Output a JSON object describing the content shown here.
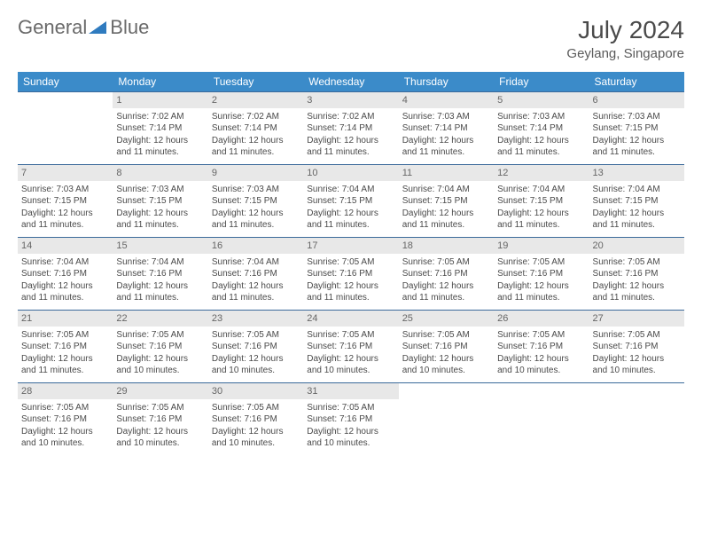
{
  "logo": {
    "text_left": "General",
    "text_right": "Blue"
  },
  "title": "July 2024",
  "location": "Geylang, Singapore",
  "colors": {
    "header_bg": "#3b8bc9",
    "header_text": "#ffffff",
    "daynum_bg": "#e8e8e8",
    "row_divider": "#3b6a9a",
    "text": "#4a4a4a",
    "logo_blue": "#2f7bbf"
  },
  "day_headers": [
    "Sunday",
    "Monday",
    "Tuesday",
    "Wednesday",
    "Thursday",
    "Friday",
    "Saturday"
  ],
  "weeks": [
    {
      "nums": [
        "",
        "1",
        "2",
        "3",
        "4",
        "5",
        "6"
      ],
      "cells": [
        null,
        {
          "sr": "7:02 AM",
          "ss": "7:14 PM",
          "dl": "12 hours and 11 minutes."
        },
        {
          "sr": "7:02 AM",
          "ss": "7:14 PM",
          "dl": "12 hours and 11 minutes."
        },
        {
          "sr": "7:02 AM",
          "ss": "7:14 PM",
          "dl": "12 hours and 11 minutes."
        },
        {
          "sr": "7:03 AM",
          "ss": "7:14 PM",
          "dl": "12 hours and 11 minutes."
        },
        {
          "sr": "7:03 AM",
          "ss": "7:14 PM",
          "dl": "12 hours and 11 minutes."
        },
        {
          "sr": "7:03 AM",
          "ss": "7:15 PM",
          "dl": "12 hours and 11 minutes."
        }
      ]
    },
    {
      "nums": [
        "7",
        "8",
        "9",
        "10",
        "11",
        "12",
        "13"
      ],
      "cells": [
        {
          "sr": "7:03 AM",
          "ss": "7:15 PM",
          "dl": "12 hours and 11 minutes."
        },
        {
          "sr": "7:03 AM",
          "ss": "7:15 PM",
          "dl": "12 hours and 11 minutes."
        },
        {
          "sr": "7:03 AM",
          "ss": "7:15 PM",
          "dl": "12 hours and 11 minutes."
        },
        {
          "sr": "7:04 AM",
          "ss": "7:15 PM",
          "dl": "12 hours and 11 minutes."
        },
        {
          "sr": "7:04 AM",
          "ss": "7:15 PM",
          "dl": "12 hours and 11 minutes."
        },
        {
          "sr": "7:04 AM",
          "ss": "7:15 PM",
          "dl": "12 hours and 11 minutes."
        },
        {
          "sr": "7:04 AM",
          "ss": "7:15 PM",
          "dl": "12 hours and 11 minutes."
        }
      ]
    },
    {
      "nums": [
        "14",
        "15",
        "16",
        "17",
        "18",
        "19",
        "20"
      ],
      "cells": [
        {
          "sr": "7:04 AM",
          "ss": "7:16 PM",
          "dl": "12 hours and 11 minutes."
        },
        {
          "sr": "7:04 AM",
          "ss": "7:16 PM",
          "dl": "12 hours and 11 minutes."
        },
        {
          "sr": "7:04 AM",
          "ss": "7:16 PM",
          "dl": "12 hours and 11 minutes."
        },
        {
          "sr": "7:05 AM",
          "ss": "7:16 PM",
          "dl": "12 hours and 11 minutes."
        },
        {
          "sr": "7:05 AM",
          "ss": "7:16 PM",
          "dl": "12 hours and 11 minutes."
        },
        {
          "sr": "7:05 AM",
          "ss": "7:16 PM",
          "dl": "12 hours and 11 minutes."
        },
        {
          "sr": "7:05 AM",
          "ss": "7:16 PM",
          "dl": "12 hours and 11 minutes."
        }
      ]
    },
    {
      "nums": [
        "21",
        "22",
        "23",
        "24",
        "25",
        "26",
        "27"
      ],
      "cells": [
        {
          "sr": "7:05 AM",
          "ss": "7:16 PM",
          "dl": "12 hours and 11 minutes."
        },
        {
          "sr": "7:05 AM",
          "ss": "7:16 PM",
          "dl": "12 hours and 10 minutes."
        },
        {
          "sr": "7:05 AM",
          "ss": "7:16 PM",
          "dl": "12 hours and 10 minutes."
        },
        {
          "sr": "7:05 AM",
          "ss": "7:16 PM",
          "dl": "12 hours and 10 minutes."
        },
        {
          "sr": "7:05 AM",
          "ss": "7:16 PM",
          "dl": "12 hours and 10 minutes."
        },
        {
          "sr": "7:05 AM",
          "ss": "7:16 PM",
          "dl": "12 hours and 10 minutes."
        },
        {
          "sr": "7:05 AM",
          "ss": "7:16 PM",
          "dl": "12 hours and 10 minutes."
        }
      ]
    },
    {
      "nums": [
        "28",
        "29",
        "30",
        "31",
        "",
        "",
        ""
      ],
      "cells": [
        {
          "sr": "7:05 AM",
          "ss": "7:16 PM",
          "dl": "12 hours and 10 minutes."
        },
        {
          "sr": "7:05 AM",
          "ss": "7:16 PM",
          "dl": "12 hours and 10 minutes."
        },
        {
          "sr": "7:05 AM",
          "ss": "7:16 PM",
          "dl": "12 hours and 10 minutes."
        },
        {
          "sr": "7:05 AM",
          "ss": "7:16 PM",
          "dl": "12 hours and 10 minutes."
        },
        null,
        null,
        null
      ]
    }
  ],
  "labels": {
    "sunrise": "Sunrise:",
    "sunset": "Sunset:",
    "daylight": "Daylight:"
  }
}
